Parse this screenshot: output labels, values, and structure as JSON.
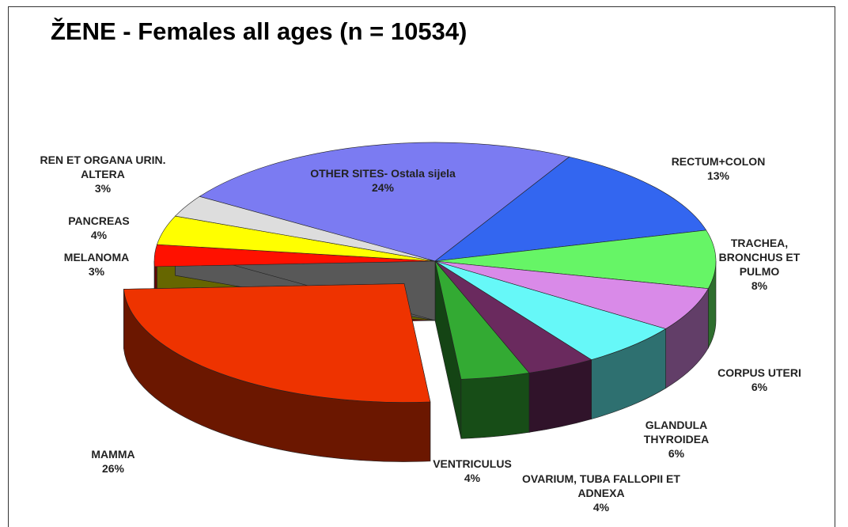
{
  "chart_data": {
    "type": "pie3d",
    "title": "ŽENE - Females all ages (n = 10534)",
    "categories": [
      "OTHER SITES- Ostala sijela",
      "RECTUM+COLON",
      "TRACHEA, BRONCHUS ET PULMO",
      "CORPUS UTERI",
      "GLANDULA THYROIDEA",
      "OVARIUM, TUBA FALLOPII ET ADNEXA",
      "VENTRICULUS",
      "MAMMA",
      "MELANOMA",
      "PANCREAS",
      "REN ET ORGANA URIN. ALTERA"
    ],
    "values": [
      24,
      13,
      8,
      6,
      6,
      4,
      4,
      26,
      3,
      4,
      3
    ],
    "value_labels": [
      "24%",
      "13%",
      "8%",
      "6%",
      "6%",
      "4%",
      "4%",
      "26%",
      "3%",
      "4%",
      "3%"
    ],
    "colors": [
      "#7b7bf2",
      "#3366f0",
      "#66f566",
      "#d98ae8",
      "#66f8f8",
      "#6a2a5e",
      "#33aa33",
      "#ee3300",
      "#ff1100",
      "#ffff00",
      "#dddddd"
    ],
    "exploded": [
      7
    ]
  }
}
